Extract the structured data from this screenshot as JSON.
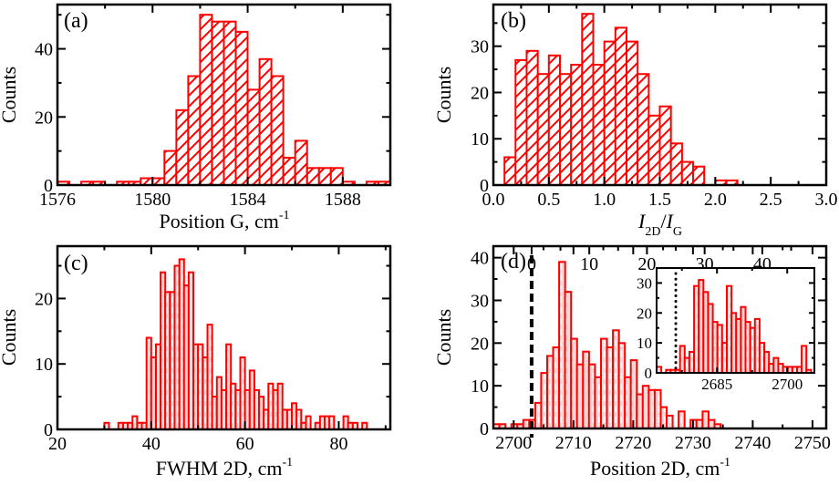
{
  "figure": {
    "bar_color": "#ff0000",
    "axis_color": "#000000"
  },
  "chart_data": [
    {
      "id": "a",
      "type": "bar",
      "panel_label": "(a)",
      "title": "",
      "xlabel": "Position G, cm",
      "xlabel_superscript": "-1",
      "ylabel": "Counts",
      "xlim": [
        1576,
        1590
      ],
      "ylim": [
        0,
        53
      ],
      "xticks": [
        1576,
        1580,
        1584,
        1588
      ],
      "xminor": [
        1578,
        1582,
        1586,
        1590
      ],
      "yticks": [
        0,
        20,
        40
      ],
      "yminor": [
        10,
        30,
        50
      ],
      "bin_width": 0.5,
      "bin_start": [
        1576.0,
        1577.0,
        1577.5,
        1578.5,
        1579.0,
        1579.5,
        1580.0,
        1580.5,
        1581.0,
        1581.5,
        1582.0,
        1582.5,
        1583.0,
        1583.5,
        1584.0,
        1584.5,
        1585.0,
        1585.5,
        1586.0,
        1586.5,
        1587.0,
        1587.5,
        1588.0,
        1589.0,
        1589.5
      ],
      "values": [
        1,
        1,
        1,
        1,
        1,
        2,
        2,
        10,
        22,
        32,
        50,
        48,
        48,
        45,
        28,
        37,
        32,
        8,
        13,
        5,
        5,
        5,
        1,
        1,
        1
      ]
    },
    {
      "id": "b",
      "type": "bar",
      "panel_label": "(b)",
      "title": "",
      "xlabel_parts": [
        "I",
        "2D",
        "/",
        "I",
        "G"
      ],
      "ylabel": "Counts",
      "xlim": [
        0.0,
        3.0
      ],
      "ylim": [
        0,
        39
      ],
      "xticks": [
        "0.0",
        "0.5",
        "1.0",
        "1.5",
        "2.0",
        "2.5",
        "3.0"
      ],
      "xminor": [
        0.25,
        0.75,
        1.25,
        1.75,
        2.25,
        2.75
      ],
      "yticks": [
        0,
        10,
        20,
        30
      ],
      "yminor": [
        5,
        15,
        25,
        35
      ],
      "bin_width": 0.1,
      "bin_start": [
        0.1,
        0.2,
        0.3,
        0.4,
        0.5,
        0.6,
        0.7,
        0.8,
        0.9,
        1.0,
        1.1,
        1.2,
        1.3,
        1.4,
        1.5,
        1.6,
        1.7,
        1.8,
        2.0,
        2.1
      ],
      "values": [
        6,
        27,
        29,
        24,
        28,
        24,
        26,
        37,
        26,
        31,
        34,
        31,
        24,
        15,
        17,
        9,
        5,
        4,
        1,
        1
      ]
    },
    {
      "id": "c",
      "type": "bar",
      "panel_label": "(c)",
      "title": "",
      "xlabel": "FWHM 2D, cm",
      "xlabel_superscript": "-1",
      "ylabel": "Counts",
      "xlim": [
        20,
        91
      ],
      "ylim": [
        0,
        28
      ],
      "xticks": [
        20,
        40,
        60,
        80
      ],
      "xminor": [
        30,
        50,
        70,
        90
      ],
      "yticks": [
        0,
        10,
        20
      ],
      "yminor": [
        5,
        15,
        25
      ],
      "bin_width": 1,
      "bin_start": [
        30,
        33,
        34,
        35,
        36,
        37,
        38,
        39,
        40,
        41,
        42,
        43,
        44,
        45,
        46,
        47,
        48,
        49,
        50,
        51,
        52,
        53,
        54,
        55,
        56,
        57,
        58,
        59,
        60,
        61,
        62,
        63,
        64,
        65,
        66,
        67,
        68,
        69,
        70,
        71,
        72,
        73,
        75,
        76,
        77,
        78,
        81,
        82,
        83,
        85
      ],
      "values": [
        1,
        1,
        1,
        1,
        2,
        1,
        1,
        14,
        11,
        13,
        24,
        21,
        21,
        25,
        26,
        22,
        24,
        13,
        13,
        11,
        16,
        5,
        8,
        6,
        13,
        7,
        6,
        11,
        6,
        9,
        6,
        5,
        3,
        7,
        6,
        7,
        3,
        3,
        4,
        3,
        1,
        2,
        1,
        2,
        2,
        2,
        2,
        1,
        1,
        1
      ]
    },
    {
      "id": "d",
      "type": "bar",
      "panel_label": "(d)",
      "title": "",
      "xlabel": "Position 2D, cm",
      "xlabel_superscript": "-1",
      "ylabel": "Counts",
      "xlim": [
        2696.6,
        2752.3
      ],
      "ylim": [
        0,
        42.7
      ],
      "xticks": [
        2700,
        2710,
        2720,
        2730,
        2740,
        2750
      ],
      "xminor": [
        2705,
        2715,
        2725,
        2735,
        2745
      ],
      "yticks": [
        0,
        10,
        20,
        30,
        40
      ],
      "yminor": [
        5,
        15,
        25,
        35
      ],
      "top_axis": {
        "ticks": [
          0,
          10,
          20,
          30,
          40
        ],
        "zero_at_x": 2703.0,
        "units_per_main_unit": 1.04
      },
      "reference_line": {
        "x": 2703.0,
        "style": "dashed"
      },
      "bin_width": 1,
      "bin_start": [
        2696.6,
        2697.6,
        2699.6,
        2700.6,
        2701.6,
        2702.6,
        2703.6,
        2704.6,
        2705.6,
        2706.6,
        2707.6,
        2708.6,
        2709.6,
        2710.6,
        2711.6,
        2712.6,
        2713.6,
        2714.6,
        2715.6,
        2716.6,
        2717.6,
        2718.6,
        2719.6,
        2720.6,
        2721.6,
        2722.6,
        2723.6,
        2724.6,
        2725.6,
        2727.6,
        2728.6,
        2729.6,
        2730.6,
        2731.6,
        2732.6,
        2733.6
      ],
      "values": [
        1,
        1,
        1,
        1,
        2,
        2,
        6,
        13,
        17,
        19,
        39,
        32,
        21,
        15,
        18,
        15,
        12,
        21,
        19,
        23,
        20,
        12,
        16,
        8,
        10,
        9,
        9,
        5,
        3,
        4,
        0,
        2,
        2,
        4,
        2,
        1
      ]
    },
    {
      "id": "d-inset",
      "type": "bar",
      "panel_label": "",
      "title": "",
      "xlabel": "",
      "ylabel": "",
      "xlim": [
        2672.1,
        2705.8
      ],
      "ylim": [
        0,
        35
      ],
      "xticks": [
        2685,
        2700
      ],
      "xminor": [
        2677.5,
        2692.5
      ],
      "yticks": [
        0,
        10,
        20,
        30
      ],
      "yminor": [
        5,
        15,
        25
      ],
      "reference_line": {
        "x": 2676.2,
        "style": "dotted"
      },
      "bin_width": 1,
      "bin_start": [
        2672.1,
        2674.1,
        2675.1,
        2676.1,
        2677.1,
        2678.1,
        2679.1,
        2680.1,
        2681.1,
        2682.1,
        2683.1,
        2684.1,
        2685.1,
        2686.1,
        2687.1,
        2688.1,
        2689.1,
        2690.1,
        2691.1,
        2692.1,
        2693.1,
        2694.1,
        2695.1,
        2696.1,
        2697.1,
        2698.1,
        2699.1,
        2700.1,
        2701.1,
        2702.1,
        2703.1,
        2704.1
      ],
      "values": [
        2,
        1,
        1,
        1,
        9,
        5,
        7,
        29,
        31,
        27,
        23,
        17,
        16,
        10,
        29,
        20,
        18,
        22,
        17,
        15,
        18,
        10,
        7,
        3,
        5,
        3,
        2,
        2,
        2,
        2,
        9,
        1
      ]
    }
  ]
}
